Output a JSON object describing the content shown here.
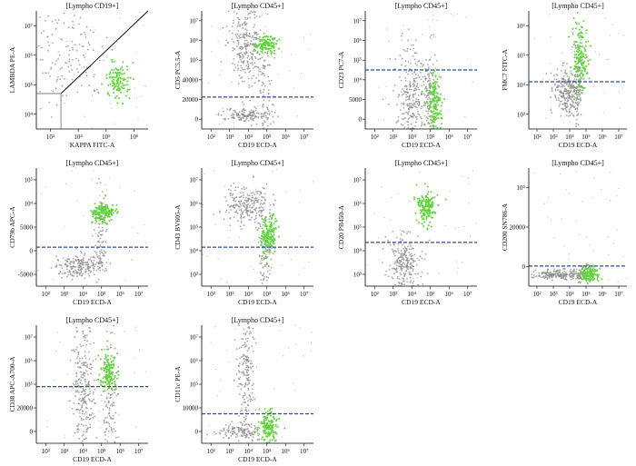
{
  "figure": {
    "colors": {
      "dots": "#8a8a8a",
      "population": "#5fd33b",
      "gate_line": "#2a4c9c",
      "axis": "#000000"
    }
  },
  "chart_data": [
    {
      "type": "scatter",
      "title": "[Lympho CD19+]",
      "xlabel": "KAPPA FITC-A",
      "ylabel": "LAMBDA PE-A",
      "x_ticks": [
        "10³",
        "10⁴",
        "10⁵",
        "10⁶"
      ],
      "y_ticks": [
        "10⁴",
        "10⁵",
        "10⁶",
        "10⁷"
      ],
      "gate": "diagonal",
      "populations": [
        "gray scatter above diagonal",
        "green cluster at KAPPA ~10⁵"
      ]
    },
    {
      "type": "scatter",
      "title": "[Lympho CD45+]",
      "xlabel": "CD19 ECD-A",
      "ylabel": "CD5 PC5.5-A",
      "x_ticks": [
        "10²",
        "10³",
        "10⁴",
        "10⁵",
        "10⁶",
        "10⁷"
      ],
      "y_ticks": [
        "0",
        "20000",
        "40000",
        "10⁵",
        "10⁶",
        "10⁷"
      ],
      "threshold_tick": "20000",
      "populations": [
        "green cluster CD19 ~10⁵, CD5 ~10⁶"
      ]
    },
    {
      "type": "scatter",
      "title": "[Lympho CD45+]",
      "xlabel": "CD19 ECD-A",
      "ylabel": "CD23 PC7-A",
      "x_ticks": [
        "10²",
        "10³",
        "10⁴",
        "10⁵",
        "10⁶",
        "10⁷"
      ],
      "y_ticks": [
        "0",
        "5000",
        "10⁴",
        "10⁵",
        "10⁶",
        "10⁷"
      ],
      "threshold_tick": "10⁴",
      "populations": [
        "green cluster CD19 ~10⁵ spanning low to ~10⁴"
      ]
    },
    {
      "type": "scatter",
      "title": "[Lympho CD45+]",
      "xlabel": "CD19 ECD-A",
      "ylabel": "FMC7 FITC-A",
      "x_ticks": [
        "10²",
        "10³",
        "10⁴",
        "10⁵",
        "10⁶",
        "10⁷"
      ],
      "y_ticks": [
        "10³",
        "10⁴",
        "10⁵",
        "10⁶"
      ],
      "threshold_tick": "10⁴",
      "populations": [
        "green cluster CD19 ~10⁵, FMC7 ~10⁴–10⁵"
      ]
    },
    {
      "type": "scatter",
      "title": "[Lympho CD45+]",
      "xlabel": "CD19 ECD-A",
      "ylabel": "CD79b APC-A",
      "x_ticks": [
        "10²",
        "10³",
        "10⁴",
        "10⁵",
        "10⁶",
        "10⁷"
      ],
      "y_ticks": [
        "-5000",
        "0",
        "5000",
        "10⁴",
        "10⁵"
      ],
      "threshold_tick": "5000",
      "populations": [
        "green cluster CD19 ~10⁵, CD79b ~10⁵"
      ]
    },
    {
      "type": "scatter",
      "title": "[Lympho CD45+]",
      "xlabel": "CD19 ECD-A",
      "ylabel": "CD43 BV605-A",
      "x_ticks": [
        "10²",
        "10³",
        "10⁴",
        "10⁵",
        "10⁶",
        "10⁷"
      ],
      "y_ticks": [
        "10³",
        "10⁴",
        "10⁵",
        "10⁶",
        "10⁷"
      ],
      "threshold_tick": "10⁴",
      "populations": [
        "green cluster CD19 ~10⁵, CD43 ~10⁵"
      ]
    },
    {
      "type": "scatter",
      "title": "[Lympho CD45+]",
      "xlabel": "CD19 ECD-A",
      "ylabel": "CD20 PB450-A",
      "x_ticks": [
        "10²",
        "10³",
        "10⁴",
        "10⁵",
        "10⁶",
        "10⁷"
      ],
      "y_ticks": [
        "10³",
        "10⁴",
        "10⁵",
        "10⁶",
        "10⁷"
      ],
      "threshold_tick": "10⁴",
      "populations": [
        "green cluster CD19 ~10⁵, CD20 ~10⁵–10⁶"
      ]
    },
    {
      "type": "scatter",
      "title": "[Lympho CD45+]",
      "xlabel": "CD19 ECD-A",
      "ylabel": "CD200 SN786-A",
      "x_ticks": [
        "10²",
        "10³",
        "10⁴",
        "10⁵",
        "10⁶",
        "10⁷"
      ],
      "y_ticks": [
        "0",
        "20000",
        "10⁵"
      ],
      "threshold_tick": "0",
      "populations": [
        "green cluster CD19 ~10⁵ near 0"
      ]
    },
    {
      "type": "scatter",
      "title": "[Lympho CD45+]",
      "xlabel": "CD19 ECD-A",
      "ylabel": "CD38 APC-A700-A",
      "x_ticks": [
        "10²",
        "10³",
        "10⁴",
        "10⁵",
        "10⁶",
        "10⁷"
      ],
      "y_ticks": [
        "0",
        "20000",
        "10⁵",
        "10⁶",
        "10⁷"
      ],
      "threshold_tick": "20000",
      "populations": [
        "green cluster CD19 ~10⁵, CD38 ~10⁵"
      ]
    },
    {
      "type": "scatter",
      "title": "[Lympho CD45+]",
      "xlabel": "CD19 ECD-A",
      "ylabel": "CD11c PE-A",
      "x_ticks": [
        "10²",
        "10³",
        "10⁴",
        "10⁵",
        "10⁶",
        "10⁷"
      ],
      "y_ticks": [
        "0",
        "10000",
        "10⁵",
        "10⁶",
        "10⁷"
      ],
      "threshold_tick": "10000",
      "populations": [
        "green cluster CD19 ~10⁵ near 0–10000"
      ]
    }
  ]
}
